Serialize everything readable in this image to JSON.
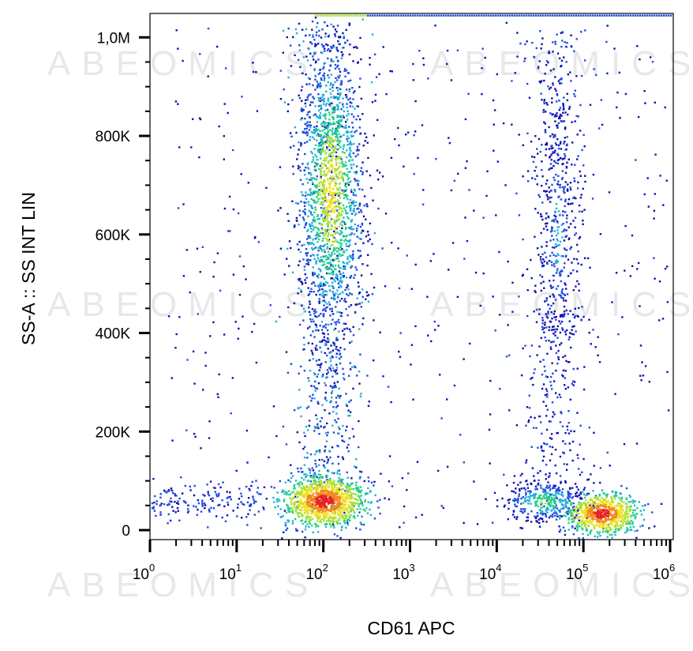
{
  "chart_data": {
    "type": "scatter",
    "subtype": "flow-cytometry-density-dot-plot",
    "title": "",
    "xlabel": "CD61 APC",
    "ylabel": "SS-A :: SS INT LIN",
    "x_scale": "log",
    "xlim": [
      1,
      1000000
    ],
    "ylim": [
      0,
      1048576
    ],
    "x_ticks": [
      {
        "value": 1,
        "base": "10",
        "exp": "0"
      },
      {
        "value": 10,
        "base": "10",
        "exp": "1"
      },
      {
        "value": 100,
        "base": "10",
        "exp": "2"
      },
      {
        "value": 1000,
        "base": "10",
        "exp": "3"
      },
      {
        "value": 10000,
        "base": "10",
        "exp": "4"
      },
      {
        "value": 100000,
        "base": "10",
        "exp": "5"
      },
      {
        "value": 1000000,
        "base": "10",
        "exp": "6"
      }
    ],
    "y_ticks": [
      {
        "value": 0,
        "label": "0"
      },
      {
        "value": 200000,
        "label": "200K"
      },
      {
        "value": 400000,
        "label": "400K"
      },
      {
        "value": 600000,
        "label": "600K"
      },
      {
        "value": 800000,
        "label": "800K"
      },
      {
        "value": 1000000,
        "label": "1,0M"
      }
    ],
    "color_scale": [
      "#1010b0",
      "#1f4de0",
      "#20b0d8",
      "#22d08a",
      "#a8e030",
      "#f0e020",
      "#f08a20",
      "#e82020"
    ],
    "populations": [
      {
        "center_x": 100,
        "center_y": 60000,
        "density": "highest"
      },
      {
        "center_x": 120,
        "center_y": 690000,
        "density": "high"
      },
      {
        "center_x": 160000,
        "center_y": 35000,
        "density": "highest"
      },
      {
        "center_x": 35000,
        "center_y": 60000,
        "density": "medium"
      },
      {
        "center_x": 50000,
        "center_y": 600000,
        "density": "low"
      }
    ],
    "grid": false,
    "legend": "none",
    "watermark": "ABEOMICS"
  }
}
